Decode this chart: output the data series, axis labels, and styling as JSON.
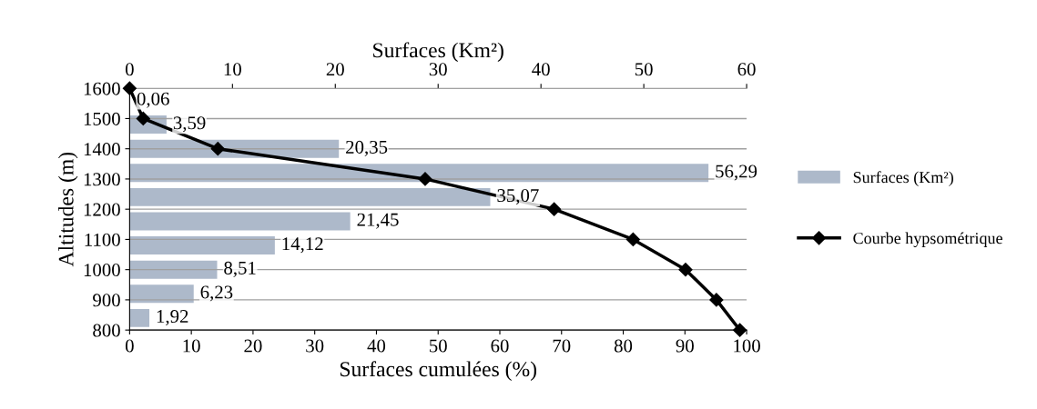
{
  "chart_data": [
    {
      "type": "bar",
      "orientation": "horizontal",
      "xlabel": "Surfaces (Km²)",
      "categories": [
        null,
        null,
        null,
        null,
        null,
        null,
        null,
        null,
        null,
        null
      ],
      "series": [
        {
          "name": "Surfaces (Km²)",
          "color": "#adb9ca",
          "values": [
            0.06,
            3.59,
            20.35,
            56.29,
            35.07,
            21.45,
            14.12,
            8.51,
            6.23,
            1.92
          ],
          "value_labels": [
            "0,06",
            "3,59",
            "20,35",
            "56,29",
            "35,07",
            "21,45",
            "14,12",
            "8,51",
            "6,23",
            "1,92"
          ]
        }
      ],
      "xlim": [
        0,
        60
      ],
      "xticks": [
        0,
        10,
        20,
        30,
        40,
        50,
        60
      ],
      "legend": "right"
    },
    {
      "type": "line",
      "xlabel": "Surfaces cumulées (%)",
      "ylabel": "Altitudes (m)",
      "series": [
        {
          "name": "Courbe hypsométrique",
          "color": "#000000",
          "x": [
            0,
            2.2,
            14.3,
            47.9,
            68.8,
            81.6,
            90.1,
            95.1,
            98.9
          ],
          "values": [
            1600,
            1500,
            1400,
            1300,
            1200,
            1100,
            1000,
            900,
            800
          ]
        }
      ],
      "marker": "diamond",
      "line_style": "solid",
      "xlim": [
        0,
        100
      ],
      "xticks": [
        0,
        10,
        20,
        30,
        40,
        50,
        60,
        70,
        80,
        90,
        100
      ],
      "ylim": [
        800,
        1600
      ],
      "yticks": [
        800,
        900,
        1000,
        1100,
        1200,
        1300,
        1400,
        1500,
        1600
      ],
      "grid": "y",
      "legend": "right"
    }
  ]
}
